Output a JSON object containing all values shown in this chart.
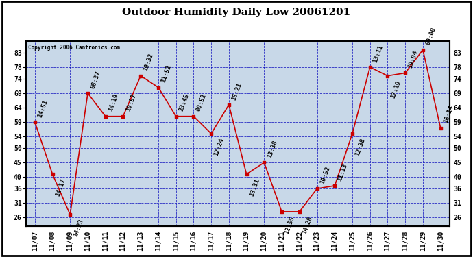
{
  "title": "Outdoor Humidity Daily Low 20061201",
  "copyright": "Copyright 2006 Cantronics.com",
  "bg_color": "#c8d8e8",
  "plot_bg_color": "#c8d8e8",
  "grid_color": "#0000bb",
  "line_color": "#cc0000",
  "point_color": "#cc0000",
  "text_color": "#000000",
  "x_labels": [
    "11/07",
    "11/08",
    "11/09",
    "11/10",
    "11/11",
    "11/12",
    "11/13",
    "11/14",
    "11/15",
    "11/16",
    "11/17",
    "11/18",
    "11/19",
    "11/20",
    "11/21",
    "11/22",
    "11/23",
    "11/24",
    "11/25",
    "11/26",
    "11/27",
    "11/28",
    "11/29",
    "11/30"
  ],
  "y_values": [
    59,
    41,
    27,
    69,
    61,
    61,
    75,
    71,
    61,
    61,
    55,
    65,
    41,
    45,
    28,
    28,
    36,
    37,
    55,
    78,
    75,
    76,
    84,
    57
  ],
  "annotations": [
    "14:51",
    "14:17",
    "14:23",
    "08:37",
    "14:19",
    "10:57",
    "19:32",
    "11:52",
    "23:45",
    "00:52",
    "12:24",
    "15:21",
    "13:31",
    "13:38",
    "12:55",
    "14:28",
    "10:52",
    "11:13",
    "12:38",
    "13:11",
    "12:19",
    "19:04",
    "00:00",
    "18:14"
  ],
  "ann_above": [
    true,
    false,
    false,
    true,
    true,
    true,
    true,
    true,
    true,
    true,
    false,
    true,
    false,
    true,
    false,
    false,
    true,
    true,
    false,
    true,
    false,
    true,
    true,
    true
  ],
  "ylim": [
    23,
    87
  ],
  "yticks": [
    26,
    31,
    36,
    40,
    45,
    50,
    54,
    59,
    64,
    69,
    74,
    78,
    83
  ],
  "title_fontsize": 11,
  "annotation_fontsize": 6.5,
  "tick_fontsize": 7
}
